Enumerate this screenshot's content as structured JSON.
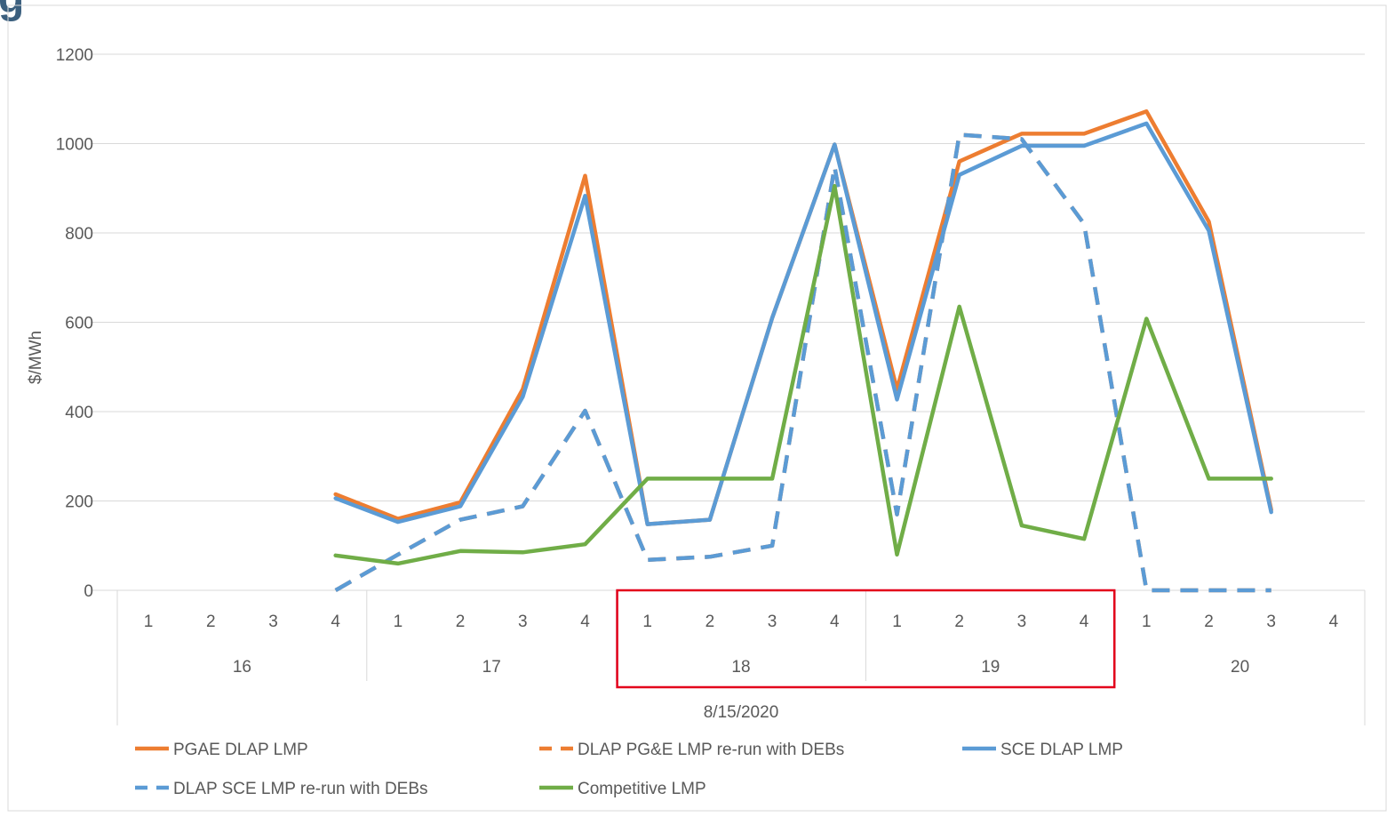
{
  "title_fragment": "g",
  "chart_data": {
    "type": "line",
    "ylabel": "$/MWh",
    "ylim": [
      0,
      1200
    ],
    "yticks": [
      "0",
      "200",
      "400",
      "600",
      "800",
      "1000",
      "1200"
    ],
    "grid": true,
    "legend_position": "bottom",
    "date_label": "8/15/2020",
    "hours": [
      "16",
      "17",
      "18",
      "19",
      "20"
    ],
    "intervals": [
      "1",
      "2",
      "3",
      "4"
    ],
    "categories": [
      "16-1",
      "16-2",
      "16-3",
      "16-4",
      "17-1",
      "17-2",
      "17-3",
      "17-4",
      "18-1",
      "18-2",
      "18-3",
      "18-4",
      "19-1",
      "19-2",
      "19-3",
      "19-4",
      "20-1",
      "20-2",
      "20-3",
      "20-4"
    ],
    "highlight": {
      "from": "18-1",
      "to": "19-4",
      "color": "#e3001b"
    },
    "series": [
      {
        "name": "PGAE DLAP LMP",
        "color": "#ed7d31",
        "dash": false,
        "values": [
          null,
          null,
          null,
          215,
          160,
          197,
          450,
          928,
          148,
          158,
          610,
          998,
          450,
          960,
          1022,
          1022,
          1072,
          825,
          180,
          null
        ]
      },
      {
        "name": "DLAP PG&E LMP re-run with DEBs",
        "color": "#ed7d31",
        "dash": true,
        "values": [
          null,
          null,
          null,
          0,
          80,
          158,
          188,
          402,
          68,
          75,
          100,
          948,
          170,
          1020,
          1010,
          820,
          0,
          0,
          0,
          null
        ]
      },
      {
        "name": "SCE DLAP LMP",
        "color": "#5b9bd5",
        "dash": false,
        "values": [
          null,
          null,
          null,
          206,
          153,
          188,
          433,
          883,
          148,
          158,
          610,
          998,
          427,
          930,
          995,
          995,
          1045,
          805,
          175,
          null
        ]
      },
      {
        "name": "DLAP SCE LMP re-run with DEBs",
        "color": "#5b9bd5",
        "dash": true,
        "values": [
          null,
          null,
          null,
          0,
          80,
          158,
          188,
          402,
          68,
          75,
          100,
          948,
          170,
          1020,
          1010,
          820,
          0,
          0,
          0,
          null
        ]
      },
      {
        "name": "Competitive LMP",
        "color": "#70ad47",
        "dash": false,
        "values": [
          null,
          null,
          null,
          78,
          60,
          88,
          85,
          103,
          250,
          250,
          250,
          905,
          80,
          635,
          145,
          115,
          608,
          250,
          250,
          null
        ]
      }
    ]
  }
}
